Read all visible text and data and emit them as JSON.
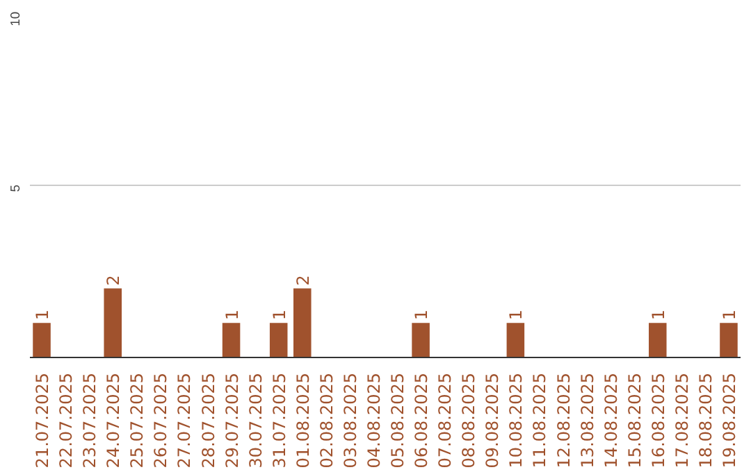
{
  "chart_data": {
    "type": "bar",
    "categories": [
      "21.07.2025",
      "22.07.2025",
      "23.07.2025",
      "24.07.2025",
      "25.07.2025",
      "26.07.2025",
      "27.07.2025",
      "28.07.2025",
      "29.07.2025",
      "30.07.2025",
      "31.07.2025",
      "01.08.2025",
      "02.08.2025",
      "03.08.2025",
      "04.08.2025",
      "05.08.2025",
      "06.08.2025",
      "07.08.2025",
      "08.08.2025",
      "09.08.2025",
      "10.08.2025",
      "11.08.2025",
      "12.08.2025",
      "13.08.2025",
      "14.08.2025",
      "15.08.2025",
      "16.08.2025",
      "17.08.2025",
      "18.08.2025",
      "19.08.2025"
    ],
    "values": [
      1,
      0,
      0,
      2,
      0,
      0,
      0,
      0,
      1,
      0,
      1,
      2,
      0,
      0,
      0,
      0,
      1,
      0,
      0,
      0,
      1,
      0,
      0,
      0,
      0,
      0,
      1,
      0,
      0,
      1
    ],
    "value_labels": [
      "1",
      null,
      null,
      "2",
      null,
      null,
      null,
      null,
      "1",
      null,
      "1",
      "2",
      null,
      null,
      null,
      null,
      "1",
      null,
      null,
      null,
      "1",
      null,
      null,
      null,
      null,
      null,
      "1",
      null,
      null,
      "1"
    ],
    "color": "#a0522d",
    "ylim": [
      0,
      10
    ],
    "yticks": [
      5,
      10
    ],
    "grid": "y"
  }
}
